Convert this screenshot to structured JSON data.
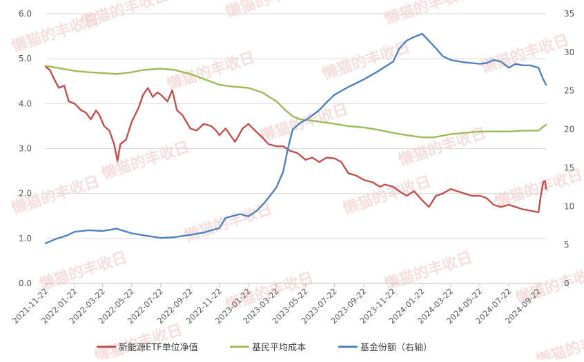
{
  "chart_data": {
    "type": "line",
    "y_left": {
      "lim": [
        0,
        6
      ],
      "ticks": [
        "0.0",
        "1.0",
        "2.0",
        "3.0",
        "4.0",
        "5.0",
        "6.0"
      ]
    },
    "y_right": {
      "lim": [
        0,
        35
      ],
      "ticks": [
        "0",
        "5",
        "10",
        "15",
        "20",
        "25",
        "30",
        "35"
      ]
    },
    "x_start": "2021-11-22",
    "x_end": "2024-10-08",
    "x_ticks": [
      "2021-11-22",
      "2022-01-22",
      "2022-03-22",
      "2022-05-22",
      "2022-07-22",
      "2022-09-22",
      "2022-11-22",
      "2023-01-22",
      "2023-03-22",
      "2023-05-22",
      "2023-07-22",
      "2023-09-22",
      "2023-11-22",
      "2024-01-22",
      "2024-03-22",
      "2024-05-22",
      "2024-07-22",
      "2024-09-22"
    ],
    "grid": true,
    "legend_position": "bottom",
    "series": [
      {
        "name": "新能源ETF单位净值",
        "axis": "left",
        "color": "#c0504d",
        "points": [
          [
            "2021-11-22",
            4.82
          ],
          [
            "2021-12-01",
            4.75
          ],
          [
            "2021-12-10",
            4.55
          ],
          [
            "2021-12-20",
            4.35
          ],
          [
            "2021-12-31",
            4.4
          ],
          [
            "2022-01-10",
            4.05
          ],
          [
            "2022-01-22",
            4.0
          ],
          [
            "2022-02-05",
            3.85
          ],
          [
            "2022-02-15",
            3.8
          ],
          [
            "2022-02-25",
            3.65
          ],
          [
            "2022-03-08",
            3.85
          ],
          [
            "2022-03-15",
            3.75
          ],
          [
            "2022-03-25",
            3.5
          ],
          [
            "2022-04-05",
            3.4
          ],
          [
            "2022-04-15",
            3.1
          ],
          [
            "2022-04-22",
            2.72
          ],
          [
            "2022-04-28",
            3.1
          ],
          [
            "2022-05-10",
            3.2
          ],
          [
            "2022-05-22",
            3.6
          ],
          [
            "2022-06-05",
            3.9
          ],
          [
            "2022-06-15",
            4.2
          ],
          [
            "2022-06-25",
            4.35
          ],
          [
            "2022-07-05",
            4.15
          ],
          [
            "2022-07-15",
            4.25
          ],
          [
            "2022-07-22",
            4.2
          ],
          [
            "2022-08-05",
            4.05
          ],
          [
            "2022-08-15",
            4.3
          ],
          [
            "2022-08-25",
            3.85
          ],
          [
            "2022-09-05",
            3.75
          ],
          [
            "2022-09-22",
            3.45
          ],
          [
            "2022-10-05",
            3.4
          ],
          [
            "2022-10-20",
            3.55
          ],
          [
            "2022-11-05",
            3.5
          ],
          [
            "2022-11-15",
            3.4
          ],
          [
            "2022-11-22",
            3.3
          ],
          [
            "2022-12-05",
            3.45
          ],
          [
            "2022-12-15",
            3.3
          ],
          [
            "2022-12-25",
            3.15
          ],
          [
            "2023-01-10",
            3.45
          ],
          [
            "2023-01-22",
            3.55
          ],
          [
            "2023-02-05",
            3.4
          ],
          [
            "2023-02-20",
            3.25
          ],
          [
            "2023-03-05",
            3.1
          ],
          [
            "2023-03-22",
            3.05
          ],
          [
            "2023-04-05",
            3.05
          ],
          [
            "2023-04-20",
            2.95
          ],
          [
            "2023-05-05",
            2.9
          ],
          [
            "2023-05-22",
            2.75
          ],
          [
            "2023-06-05",
            2.8
          ],
          [
            "2023-06-20",
            2.7
          ],
          [
            "2023-07-05",
            2.8
          ],
          [
            "2023-07-22",
            2.78
          ],
          [
            "2023-08-05",
            2.7
          ],
          [
            "2023-08-20",
            2.45
          ],
          [
            "2023-09-05",
            2.4
          ],
          [
            "2023-09-22",
            2.3
          ],
          [
            "2023-10-10",
            2.25
          ],
          [
            "2023-10-25",
            2.15
          ],
          [
            "2023-11-05",
            2.2
          ],
          [
            "2023-11-22",
            2.15
          ],
          [
            "2023-12-05",
            2.05
          ],
          [
            "2023-12-20",
            1.95
          ],
          [
            "2024-01-05",
            2.05
          ],
          [
            "2024-01-22",
            1.85
          ],
          [
            "2024-02-05",
            1.7
          ],
          [
            "2024-02-20",
            1.95
          ],
          [
            "2024-03-05",
            2.0
          ],
          [
            "2024-03-22",
            2.1
          ],
          [
            "2024-04-05",
            2.05
          ],
          [
            "2024-04-20",
            2.0
          ],
          [
            "2024-05-05",
            1.95
          ],
          [
            "2024-05-22",
            1.95
          ],
          [
            "2024-06-05",
            1.9
          ],
          [
            "2024-06-20",
            1.75
          ],
          [
            "2024-07-05",
            1.7
          ],
          [
            "2024-07-22",
            1.75
          ],
          [
            "2024-08-05",
            1.7
          ],
          [
            "2024-08-20",
            1.65
          ],
          [
            "2024-09-05",
            1.62
          ],
          [
            "2024-09-22",
            1.58
          ],
          [
            "2024-09-27",
            1.95
          ],
          [
            "2024-10-02",
            2.25
          ],
          [
            "2024-10-06",
            2.28
          ],
          [
            "2024-10-08",
            2.1
          ]
        ]
      },
      {
        "name": "基民平均成本",
        "axis": "left",
        "color": "#9bbb59",
        "points": [
          [
            "2021-11-22",
            4.84
          ],
          [
            "2021-12-15",
            4.8
          ],
          [
            "2022-01-22",
            4.73
          ],
          [
            "2022-02-20",
            4.7
          ],
          [
            "2022-03-22",
            4.68
          ],
          [
            "2022-04-20",
            4.66
          ],
          [
            "2022-05-22",
            4.7
          ],
          [
            "2022-06-15",
            4.75
          ],
          [
            "2022-07-22",
            4.78
          ],
          [
            "2022-08-20",
            4.75
          ],
          [
            "2022-09-22",
            4.66
          ],
          [
            "2022-10-20",
            4.55
          ],
          [
            "2022-11-22",
            4.42
          ],
          [
            "2022-12-20",
            4.38
          ],
          [
            "2023-01-22",
            4.35
          ],
          [
            "2023-02-20",
            4.25
          ],
          [
            "2023-03-22",
            4.05
          ],
          [
            "2023-04-10",
            3.85
          ],
          [
            "2023-04-25",
            3.72
          ],
          [
            "2023-05-10",
            3.65
          ],
          [
            "2023-05-22",
            3.64
          ],
          [
            "2023-06-20",
            3.6
          ],
          [
            "2023-07-22",
            3.55
          ],
          [
            "2023-08-20",
            3.5
          ],
          [
            "2023-09-22",
            3.47
          ],
          [
            "2023-10-20",
            3.42
          ],
          [
            "2023-11-22",
            3.35
          ],
          [
            "2023-12-20",
            3.3
          ],
          [
            "2024-01-22",
            3.25
          ],
          [
            "2024-02-15",
            3.25
          ],
          [
            "2024-03-22",
            3.32
          ],
          [
            "2024-04-20",
            3.35
          ],
          [
            "2024-05-22",
            3.38
          ],
          [
            "2024-06-20",
            3.38
          ],
          [
            "2024-07-22",
            3.38
          ],
          [
            "2024-08-20",
            3.4
          ],
          [
            "2024-09-22",
            3.4
          ],
          [
            "2024-10-01",
            3.48
          ],
          [
            "2024-10-08",
            3.53
          ]
        ]
      },
      {
        "name": "基金份额（右轴）",
        "axis": "right",
        "color": "#4f81bd",
        "points": [
          [
            "2021-11-22",
            5.2
          ],
          [
            "2021-12-15",
            5.8
          ],
          [
            "2022-01-05",
            6.2
          ],
          [
            "2022-01-22",
            6.7
          ],
          [
            "2022-02-20",
            6.9
          ],
          [
            "2022-03-22",
            6.8
          ],
          [
            "2022-04-20",
            7.1
          ],
          [
            "2022-05-22",
            6.5
          ],
          [
            "2022-06-20",
            6.2
          ],
          [
            "2022-07-22",
            5.9
          ],
          [
            "2022-08-20",
            6.0
          ],
          [
            "2022-09-22",
            6.3
          ],
          [
            "2022-10-20",
            6.6
          ],
          [
            "2022-11-22",
            7.2
          ],
          [
            "2022-12-05",
            8.5
          ],
          [
            "2023-01-05",
            9.0
          ],
          [
            "2023-01-22",
            8.7
          ],
          [
            "2023-02-10",
            9.5
          ],
          [
            "2023-02-25",
            10.5
          ],
          [
            "2023-03-10",
            11.5
          ],
          [
            "2023-03-22",
            12.5
          ],
          [
            "2023-04-05",
            14.5
          ],
          [
            "2023-04-15",
            17.5
          ],
          [
            "2023-04-25",
            20.0
          ],
          [
            "2023-05-10",
            20.8
          ],
          [
            "2023-05-22",
            21.2
          ],
          [
            "2023-06-05",
            21.8
          ],
          [
            "2023-06-20",
            22.5
          ],
          [
            "2023-07-05",
            23.5
          ],
          [
            "2023-07-22",
            24.5
          ],
          [
            "2023-08-20",
            25.5
          ],
          [
            "2023-09-22",
            26.5
          ],
          [
            "2023-10-20",
            27.5
          ],
          [
            "2023-11-22",
            28.8
          ],
          [
            "2023-12-05",
            30.5
          ],
          [
            "2023-12-20",
            31.5
          ],
          [
            "2024-01-05",
            32.0
          ],
          [
            "2024-01-22",
            32.4
          ],
          [
            "2024-02-05",
            31.5
          ],
          [
            "2024-02-20",
            30.5
          ],
          [
            "2024-03-05",
            29.5
          ],
          [
            "2024-03-22",
            29.0
          ],
          [
            "2024-04-20",
            28.7
          ],
          [
            "2024-05-22",
            28.5
          ],
          [
            "2024-06-05",
            28.6
          ],
          [
            "2024-06-20",
            29.0
          ],
          [
            "2024-07-05",
            28.8
          ],
          [
            "2024-07-22",
            28.0
          ],
          [
            "2024-08-05",
            28.5
          ],
          [
            "2024-08-20",
            28.3
          ],
          [
            "2024-09-05",
            28.3
          ],
          [
            "2024-09-22",
            28.0
          ],
          [
            "2024-10-02",
            26.5
          ],
          [
            "2024-10-08",
            25.8
          ]
        ]
      }
    ]
  },
  "watermark": "懒猫的丰收日"
}
